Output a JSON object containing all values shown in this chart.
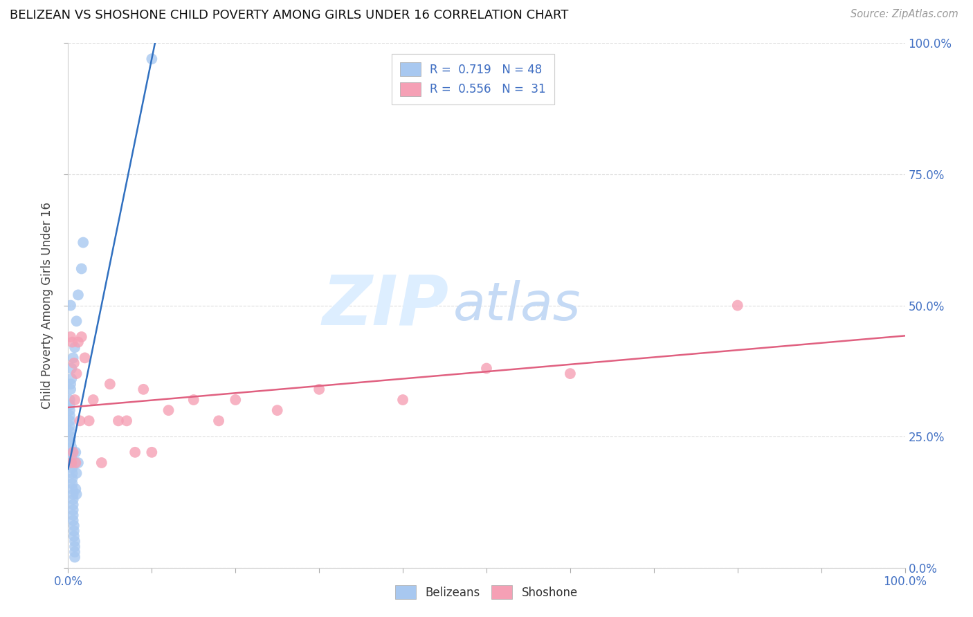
{
  "title": "BELIZEAN VS SHOSHONE CHILD POVERTY AMONG GIRLS UNDER 16 CORRELATION CHART",
  "source": "Source: ZipAtlas.com",
  "ylabel": "Child Poverty Among Girls Under 16",
  "belizean_R": 0.719,
  "belizean_N": 48,
  "shoshone_R": 0.556,
  "shoshone_N": 31,
  "belizean_color": "#a8c8f0",
  "belizean_line_color": "#3070c0",
  "shoshone_color": "#f5a0b5",
  "shoshone_line_color": "#e06080",
  "watermark_zip_color": "#ddeeff",
  "watermark_atlas_color": "#c8dff5",
  "background_color": "#ffffff",
  "grid_color": "#dddddd",
  "tick_label_color": "#4472c4",
  "belizean_x": [
    0.1,
    0.018,
    0.016,
    0.012,
    0.01,
    0.008,
    0.006,
    0.004,
    0.004,
    0.003,
    0.003,
    0.002,
    0.002,
    0.002,
    0.002,
    0.002,
    0.002,
    0.002,
    0.003,
    0.003,
    0.004,
    0.004,
    0.004,
    0.004,
    0.005,
    0.005,
    0.005,
    0.005,
    0.005,
    0.006,
    0.006,
    0.006,
    0.006,
    0.006,
    0.006,
    0.007,
    0.007,
    0.007,
    0.008,
    0.008,
    0.008,
    0.008,
    0.009,
    0.009,
    0.01,
    0.01,
    0.012,
    0.003
  ],
  "belizean_y": [
    0.97,
    0.62,
    0.57,
    0.52,
    0.47,
    0.42,
    0.4,
    0.38,
    0.36,
    0.35,
    0.34,
    0.32,
    0.31,
    0.3,
    0.29,
    0.28,
    0.27,
    0.26,
    0.25,
    0.24,
    0.23,
    0.22,
    0.21,
    0.2,
    0.19,
    0.18,
    0.17,
    0.16,
    0.15,
    0.14,
    0.13,
    0.12,
    0.11,
    0.1,
    0.09,
    0.08,
    0.07,
    0.06,
    0.05,
    0.04,
    0.03,
    0.02,
    0.15,
    0.22,
    0.18,
    0.14,
    0.2,
    0.5
  ],
  "shoshone_x": [
    0.003,
    0.004,
    0.005,
    0.006,
    0.007,
    0.008,
    0.009,
    0.01,
    0.012,
    0.014,
    0.016,
    0.02,
    0.025,
    0.03,
    0.04,
    0.05,
    0.06,
    0.07,
    0.08,
    0.09,
    0.1,
    0.12,
    0.15,
    0.18,
    0.2,
    0.25,
    0.3,
    0.4,
    0.5,
    0.6,
    0.8
  ],
  "shoshone_y": [
    0.44,
    0.2,
    0.43,
    0.22,
    0.39,
    0.32,
    0.2,
    0.37,
    0.43,
    0.28,
    0.44,
    0.4,
    0.28,
    0.32,
    0.2,
    0.35,
    0.28,
    0.28,
    0.22,
    0.34,
    0.22,
    0.3,
    0.32,
    0.28,
    0.32,
    0.3,
    0.34,
    0.32,
    0.38,
    0.37,
    0.5
  ],
  "xlim": [
    0,
    1.0
  ],
  "ylim": [
    0,
    1.0
  ],
  "xticks": [
    0,
    0.25,
    0.5,
    0.75,
    1.0
  ],
  "yticks": [
    0,
    0.25,
    0.5,
    0.75,
    1.0
  ],
  "yticklabels": [
    "0.0%",
    "25.0%",
    "50.0%",
    "75.0%",
    "100.0%"
  ]
}
